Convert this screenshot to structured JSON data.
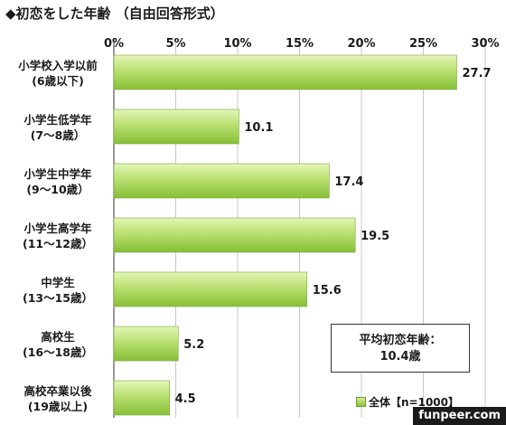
{
  "chart_data": {
    "type": "bar",
    "orientation": "horizontal",
    "title": "◆初恋をした年齢 （自由回答形式）",
    "categories": [
      {
        "line1": "小学校入学以前",
        "line2": "(6歳以下)"
      },
      {
        "line1": "小学生低学年",
        "line2": "(7～8歳）"
      },
      {
        "line1": "小学生中学年",
        "line2": "(9～10歳）"
      },
      {
        "line1": "小学生高学年",
        "line2": "(11～12歳）"
      },
      {
        "line1": "中学生",
        "line2": "(13～15歳）"
      },
      {
        "line1": "高校生",
        "line2": "(16～18歳）"
      },
      {
        "line1": "高校卒業以後",
        "line2": "(19歳以上)"
      }
    ],
    "series": [
      {
        "name": "全体【n=1000】",
        "values": [
          27.7,
          10.1,
          17.4,
          19.5,
          15.6,
          5.2,
          4.5
        ]
      }
    ],
    "value_labels": [
      "27.7",
      "10.1",
      "17.4",
      "19.5",
      "15.6",
      "5.2",
      "4.5"
    ],
    "xlim": [
      0,
      30
    ],
    "x_ticks": [
      "0%",
      "5%",
      "10%",
      "15%",
      "20%",
      "25%",
      "30%"
    ],
    "gridlines": true,
    "legend_position": "bottom-right",
    "bar_color": "#a9d65c",
    "annotation": {
      "line1": "平均初恋年齢：",
      "line2": "10.4歳"
    }
  },
  "watermark": "funpeer.com"
}
